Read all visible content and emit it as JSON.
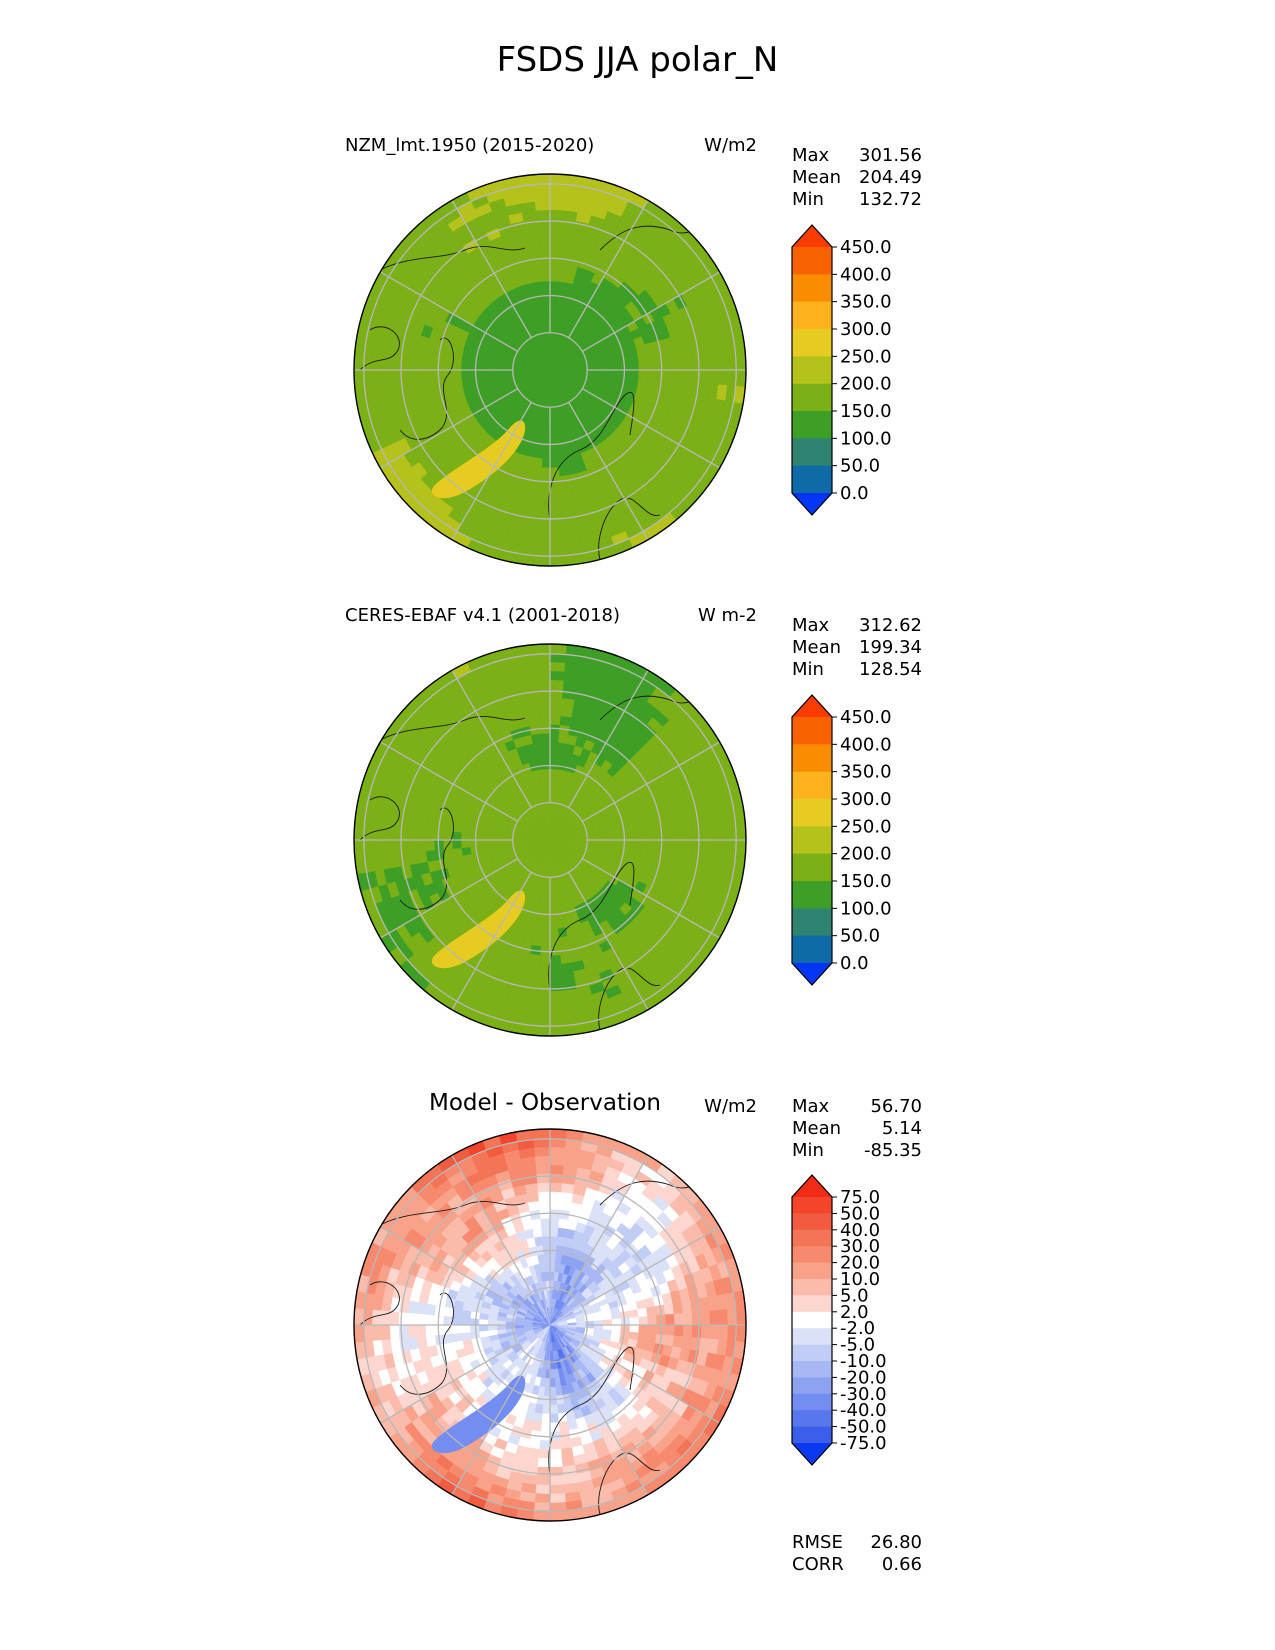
{
  "figure_title": "FSDS JJA polar_N",
  "chart_data": [
    {
      "type": "heatmap",
      "projection": "north polar stereographic",
      "title": "NZM_lmt.1950 (2015-2020)",
      "units": "W/m2",
      "stats": [
        {
          "label": "Max",
          "value": "301.56"
        },
        {
          "label": "Mean",
          "value": "204.49"
        },
        {
          "label": "Min",
          "value": "132.72"
        }
      ],
      "colorbar": {
        "ticks": [
          "450.0",
          "400.0",
          "350.0",
          "300.0",
          "250.0",
          "200.0",
          "150.0",
          "100.0",
          "50.0",
          "0.0"
        ],
        "colors": [
          "#fa3c00",
          "#f86200",
          "#fa8c00",
          "#fcb31e",
          "#e6cc21",
          "#b5c21c",
          "#7bb017",
          "#3e9f26",
          "#2e8470",
          "#0f6aa8",
          "#0536f7"
        ],
        "extend": "both"
      },
      "dominant_range": [
        150,
        250
      ]
    },
    {
      "type": "heatmap",
      "projection": "north polar stereographic",
      "title": "CERES-EBAF v4.1 (2001-2018)",
      "units": "W m-2",
      "stats": [
        {
          "label": "Max",
          "value": "312.62"
        },
        {
          "label": "Mean",
          "value": "199.34"
        },
        {
          "label": "Min",
          "value": "128.54"
        }
      ],
      "colorbar": {
        "ticks": [
          "450.0",
          "400.0",
          "350.0",
          "300.0",
          "250.0",
          "200.0",
          "150.0",
          "100.0",
          "50.0",
          "0.0"
        ],
        "colors": [
          "#fa3c00",
          "#f86200",
          "#fa8c00",
          "#fcb31e",
          "#e6cc21",
          "#b5c21c",
          "#7bb017",
          "#3e9f26",
          "#2e8470",
          "#0f6aa8",
          "#0536f7"
        ],
        "extend": "both"
      },
      "dominant_range": [
        150,
        250
      ]
    },
    {
      "type": "heatmap",
      "projection": "north polar stereographic",
      "title": "Model - Observation",
      "units": "W/m2",
      "stats": [
        {
          "label": "Max",
          "value": "56.70"
        },
        {
          "label": "Mean",
          "value": "5.14"
        },
        {
          "label": "Min",
          "value": "-85.35"
        }
      ],
      "extra_stats": [
        {
          "label": "RMSE",
          "value": "26.80"
        },
        {
          "label": "CORR",
          "value": "0.66"
        }
      ],
      "colorbar": {
        "ticks": [
          "75.0",
          "50.0",
          "40.0",
          "30.0",
          "20.0",
          "10.0",
          "5.0",
          "2.0",
          "-2.0",
          "-5.0",
          "-10.0",
          "-20.0",
          "-30.0",
          "-40.0",
          "-50.0",
          "-75.0"
        ],
        "colors": [
          "#f22b16",
          "#f2452c",
          "#f35b40",
          "#f47457",
          "#f78a6e",
          "#f9a28a",
          "#fbbbab",
          "#fdd7cf",
          "#ffffff",
          "#dbe2f8",
          "#c2cdf6",
          "#a8b8f4",
          "#8ea2f2",
          "#738df0",
          "#5877ec",
          "#3b5fe8",
          "#0b39f0"
        ],
        "extend": "both"
      }
    }
  ]
}
